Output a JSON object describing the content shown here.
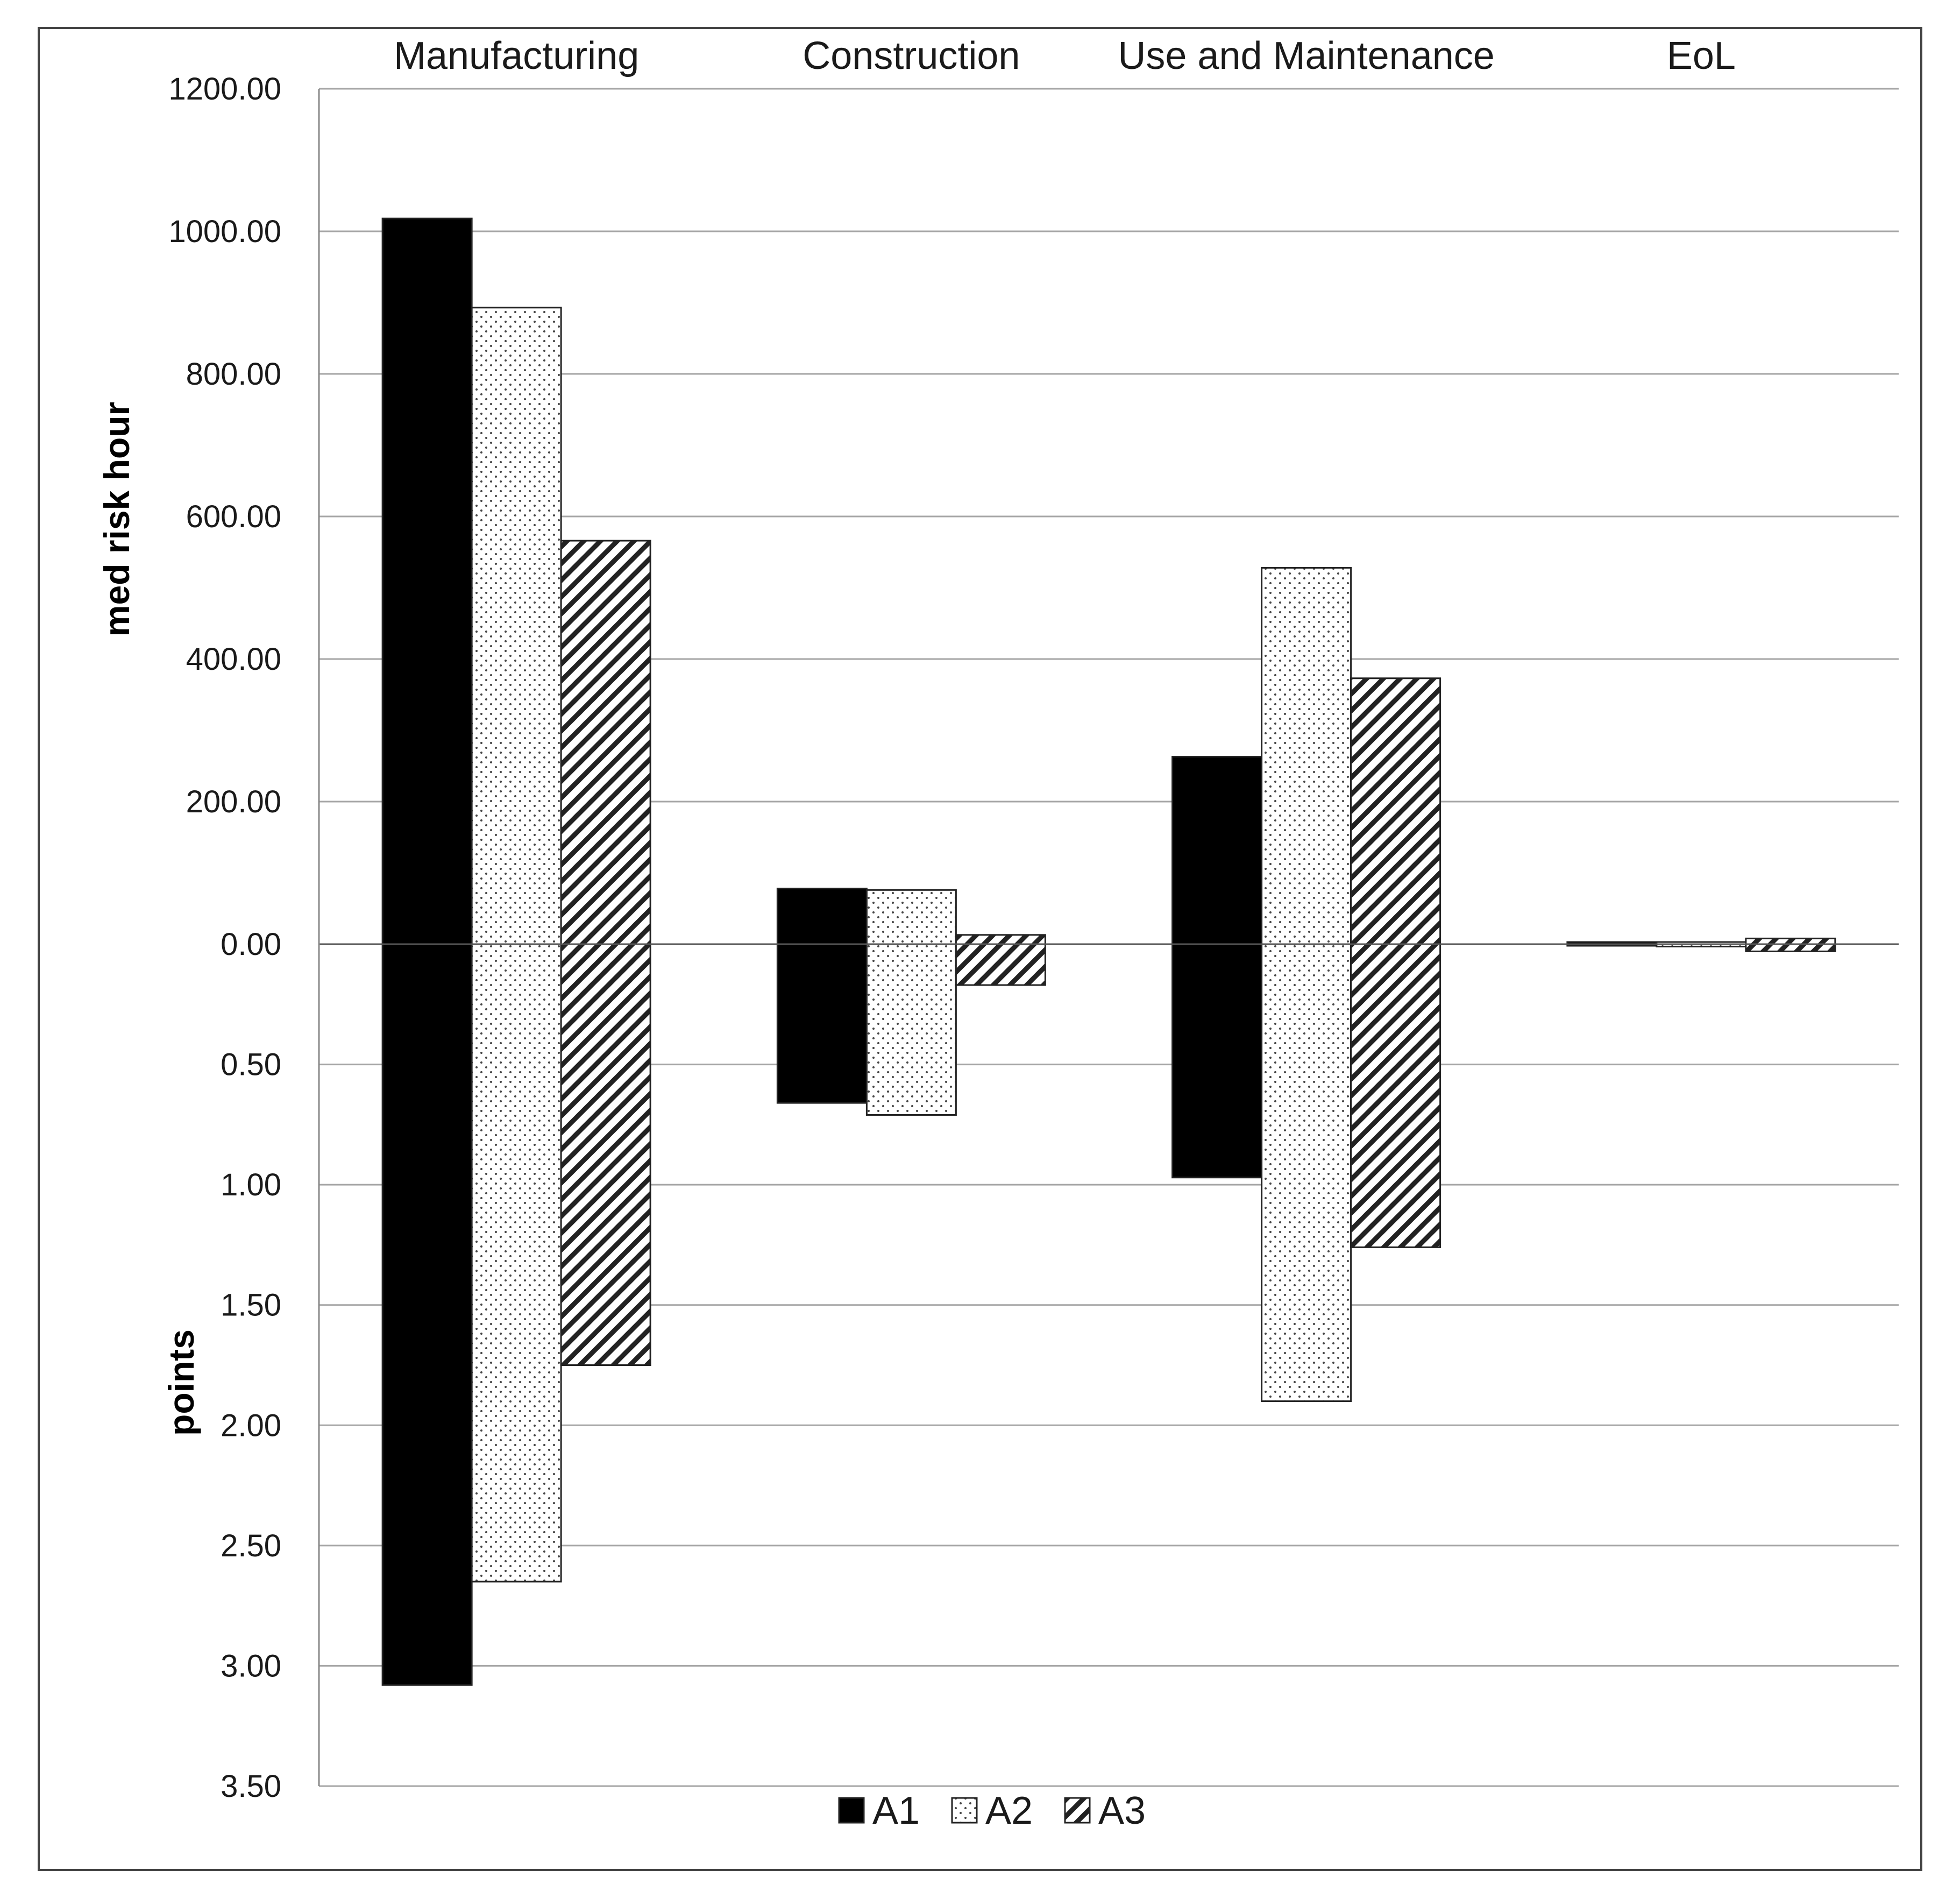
{
  "chart_data": {
    "type": "bar",
    "categories": [
      "Manufacturing",
      "Construction",
      "Use and Maintenance",
      "EoL"
    ],
    "top_axis": {
      "label": "med risk hour",
      "ticks": [
        "0.00",
        "200.00",
        "400.00",
        "600.00",
        "800.00",
        "1000.00",
        "1200.00"
      ],
      "range": [
        0,
        1200
      ]
    },
    "bottom_axis": {
      "label": "points",
      "ticks": [
        "0.50",
        "1.00",
        "1.50",
        "2.00",
        "2.50",
        "3.00",
        "3.50"
      ],
      "range": [
        0,
        3.5
      ]
    },
    "series": [
      {
        "name": "A1",
        "pattern": "solid",
        "top_values": [
          1018,
          78,
          263,
          3
        ],
        "bottom_values": [
          3.08,
          0.66,
          0.97,
          0.0
        ]
      },
      {
        "name": "A2",
        "pattern": "dots",
        "top_values": [
          893,
          76,
          528,
          3
        ],
        "bottom_values": [
          2.65,
          0.71,
          1.9,
          0.01
        ]
      },
      {
        "name": "A3",
        "pattern": "hatch",
        "top_values": [
          566,
          13,
          373,
          8
        ],
        "bottom_values": [
          1.75,
          0.17,
          1.26,
          0.03
        ]
      }
    ],
    "grid": true,
    "legend": "bottom-center",
    "colors": {
      "solid": "#000000",
      "outline": "#222222",
      "grid": "#a6a6a6",
      "frame": "#444444"
    }
  }
}
